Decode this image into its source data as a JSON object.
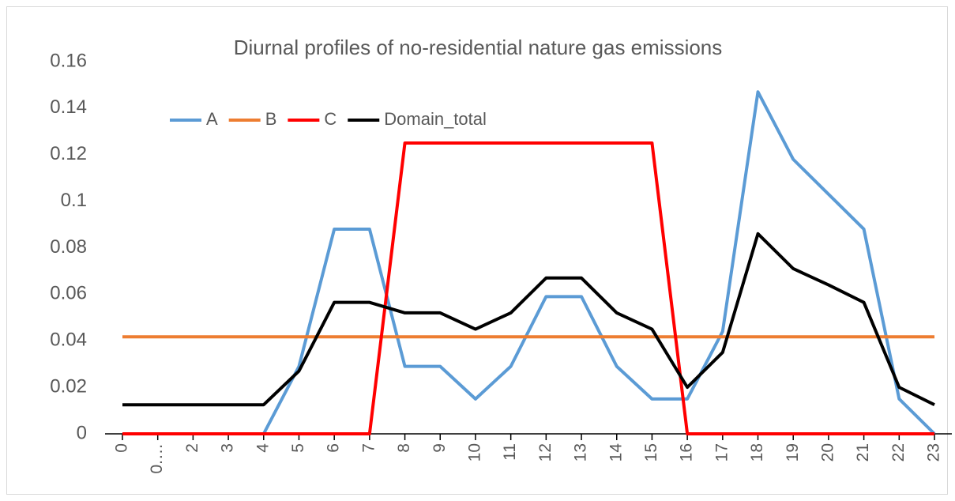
{
  "chart_data": {
    "type": "line",
    "title": "Diurnal profiles of no-residential nature gas emissions",
    "categories": [
      "0",
      "0.…",
      "2",
      "3",
      "4",
      "5",
      "6",
      "7",
      "8",
      "9",
      "10",
      "11",
      "12",
      "13",
      "14",
      "15",
      "16",
      "17",
      "18",
      "19",
      "20",
      "21",
      "22",
      "23"
    ],
    "series": [
      {
        "name": "A",
        "color": "#5b9bd5",
        "values": [
          0,
          0,
          0,
          0,
          0,
          0.029,
          0.088,
          0.088,
          0.029,
          0.029,
          0.015,
          0.029,
          0.059,
          0.059,
          0.029,
          0.015,
          0.015,
          0.044,
          0.147,
          0.118,
          0.103,
          0.088,
          0.015,
          0
        ]
      },
      {
        "name": "B",
        "color": "#ed7d31",
        "values": [
          0.0417,
          0.0417,
          0.0417,
          0.0417,
          0.0417,
          0.0417,
          0.0417,
          0.0417,
          0.0417,
          0.0417,
          0.0417,
          0.0417,
          0.0417,
          0.0417,
          0.0417,
          0.0417,
          0.0417,
          0.0417,
          0.0417,
          0.0417,
          0.0417,
          0.0417,
          0.0417,
          0.0417
        ]
      },
      {
        "name": "C",
        "color": "#ff0000",
        "values": [
          0,
          0,
          0,
          0,
          0,
          0,
          0,
          0,
          0.125,
          0.125,
          0.125,
          0.125,
          0.125,
          0.125,
          0.125,
          0.125,
          0,
          0,
          0,
          0,
          0,
          0,
          0,
          0
        ]
      },
      {
        "name": "Domain_total",
        "color": "#000000",
        "values": [
          0.0125,
          0.0125,
          0.0125,
          0.0125,
          0.0125,
          0.027,
          0.0565,
          0.0565,
          0.052,
          0.052,
          0.045,
          0.052,
          0.067,
          0.067,
          0.052,
          0.045,
          0.02,
          0.035,
          0.086,
          0.071,
          0.064,
          0.0565,
          0.02,
          0.0125
        ]
      }
    ],
    "ylim": [
      0,
      0.16
    ],
    "yticks": [
      0,
      0.02,
      0.04,
      0.06,
      0.08,
      0.1,
      0.12,
      0.14,
      0.16
    ],
    "grid": false,
    "legend": "top-left"
  }
}
